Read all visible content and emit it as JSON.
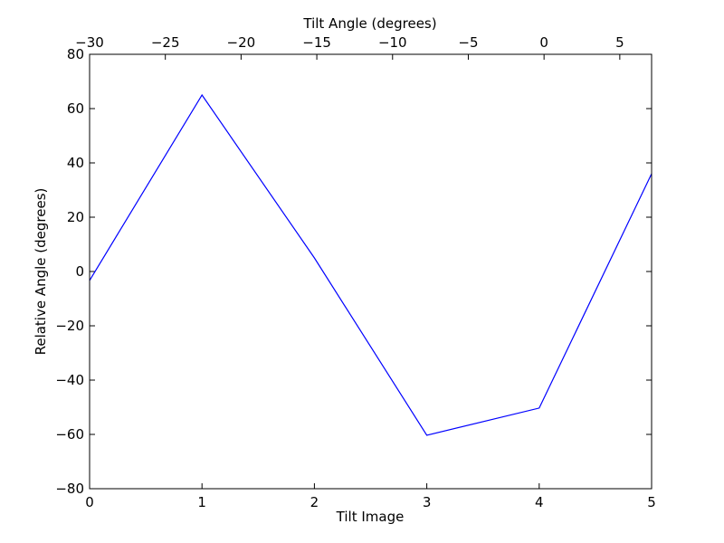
{
  "chart_data": {
    "type": "line",
    "xlabel": "Tilt Image",
    "ylabel": "Relative Angle (degrees)",
    "x2label": "Tilt Angle (degrees)",
    "x": [
      0,
      1,
      2,
      3,
      4,
      5
    ],
    "series": [
      {
        "color": "#0000ff",
        "values": [
          -3.3,
          65,
          5,
          -60.3,
          -50.3,
          36
        ]
      }
    ],
    "xlim": [
      0,
      5
    ],
    "xticks": [
      0,
      1,
      2,
      3,
      4,
      5
    ],
    "ylim": [
      -80,
      80
    ],
    "yticks": [
      {
        "value": -80,
        "label": "−80"
      },
      {
        "value": -60,
        "label": "−60"
      },
      {
        "value": -40,
        "label": "−40"
      },
      {
        "value": -20,
        "label": "−20"
      },
      0,
      20,
      40,
      60,
      80
    ],
    "x2lim": [
      -30,
      7.1
    ],
    "x2ticks": [
      {
        "value": -30,
        "label": "−30"
      },
      {
        "value": -25,
        "label": "−25"
      },
      {
        "value": -20,
        "label": "−20"
      },
      {
        "value": -15,
        "label": "−15"
      },
      {
        "value": -10,
        "label": "−10"
      },
      {
        "value": -5,
        "label": "−5"
      },
      0,
      5
    ],
    "grid": false
  }
}
